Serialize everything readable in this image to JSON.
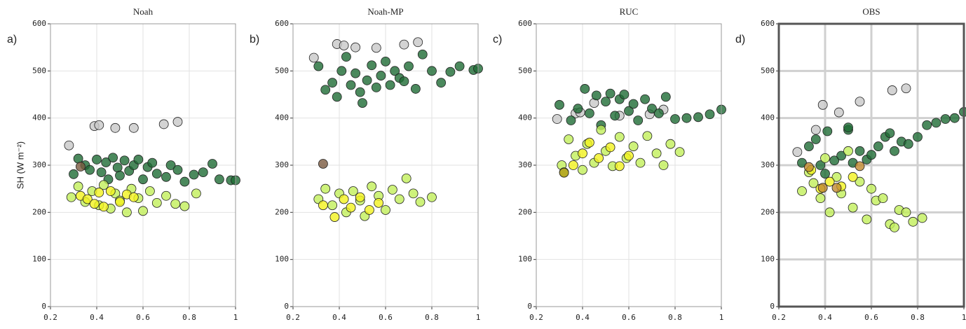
{
  "chart_data": [
    {
      "type": "scatter",
      "title": "Noah",
      "panel_label": "a)",
      "y_label": "SH (W m⁻²)",
      "xlim": [
        0.2,
        1
      ],
      "ylim": [
        0,
        600
      ],
      "xticks": [
        0.2,
        0.4,
        0.6,
        0.8,
        1
      ],
      "yticks": [
        0,
        100,
        200,
        300,
        400,
        500,
        600
      ],
      "grid_style": "light",
      "series": [
        {
          "color": "#c8c8c8",
          "x": [
            0.28,
            0.39,
            0.41,
            0.48,
            0.56,
            0.69,
            0.75
          ],
          "values": [
            342,
            383,
            385,
            379,
            379,
            387,
            392
          ]
        },
        {
          "color": "#1e6b35",
          "x": [
            0.3,
            0.32,
            0.35,
            0.37,
            0.4,
            0.42,
            0.44,
            0.45,
            0.47,
            0.49,
            0.5,
            0.52,
            0.54,
            0.56,
            0.58,
            0.6,
            0.62,
            0.64,
            0.66,
            0.7,
            0.72,
            0.75,
            0.78,
            0.82,
            0.86,
            0.9,
            0.93,
            0.98,
            1.0
          ],
          "values": [
            281,
            314,
            300,
            290,
            312,
            285,
            306,
            270,
            316,
            295,
            278,
            310,
            288,
            300,
            312,
            270,
            296,
            305,
            282,
            275,
            300,
            290,
            265,
            280,
            285,
            303,
            270,
            268,
            268
          ]
        },
        {
          "color": "#c2ef5a",
          "x": [
            0.29,
            0.32,
            0.35,
            0.38,
            0.41,
            0.43,
            0.46,
            0.48,
            0.5,
            0.53,
            0.55,
            0.58,
            0.6,
            0.63,
            0.66,
            0.7,
            0.74,
            0.78,
            0.83
          ],
          "values": [
            232,
            255,
            222,
            245,
            215,
            258,
            208,
            240,
            225,
            200,
            250,
            230,
            203,
            245,
            220,
            235,
            218,
            213,
            240
          ]
        },
        {
          "color": "#f2f21e",
          "x": [
            0.33,
            0.36,
            0.39,
            0.41,
            0.43,
            0.46,
            0.5,
            0.53,
            0.56
          ],
          "values": [
            235,
            228,
            218,
            242,
            212,
            245,
            222,
            238,
            232
          ]
        },
        {
          "color": "#7a5a40",
          "x": [
            0.33
          ],
          "values": [
            297
          ]
        }
      ]
    },
    {
      "type": "scatter",
      "title": "Noah-MP",
      "panel_label": "b)",
      "xlim": [
        0.2,
        1
      ],
      "ylim": [
        0,
        600
      ],
      "xticks": [
        0.2,
        0.4,
        0.6,
        0.8,
        1
      ],
      "yticks": [
        0,
        100,
        200,
        300,
        400,
        500,
        600
      ],
      "grid_style": "light",
      "series": [
        {
          "color": "#c8c8c8",
          "x": [
            0.29,
            0.39,
            0.42,
            0.47,
            0.56,
            0.68,
            0.74
          ],
          "values": [
            528,
            557,
            554,
            550,
            549,
            556,
            561
          ]
        },
        {
          "color": "#1e6b35",
          "x": [
            0.31,
            0.34,
            0.37,
            0.39,
            0.41,
            0.43,
            0.45,
            0.47,
            0.49,
            0.5,
            0.52,
            0.54,
            0.56,
            0.58,
            0.6,
            0.62,
            0.64,
            0.66,
            0.68,
            0.7,
            0.73,
            0.76,
            0.8,
            0.84,
            0.88,
            0.92,
            0.98,
            1.0
          ],
          "values": [
            510,
            460,
            475,
            445,
            500,
            530,
            470,
            495,
            455,
            432,
            480,
            512,
            465,
            490,
            520,
            470,
            500,
            485,
            478,
            510,
            462,
            535,
            500,
            475,
            498,
            510,
            502,
            505
          ]
        },
        {
          "color": "#c2ef5a",
          "x": [
            0.31,
            0.34,
            0.37,
            0.4,
            0.43,
            0.46,
            0.49,
            0.51,
            0.54,
            0.57,
            0.6,
            0.63,
            0.66,
            0.69,
            0.72,
            0.75,
            0.8
          ],
          "values": [
            228,
            250,
            215,
            240,
            200,
            245,
            225,
            192,
            255,
            235,
            205,
            248,
            228,
            272,
            240,
            222,
            232
          ]
        },
        {
          "color": "#f2f21e",
          "x": [
            0.33,
            0.38,
            0.42,
            0.45,
            0.49,
            0.53,
            0.57
          ],
          "values": [
            215,
            190,
            228,
            210,
            232,
            205,
            220
          ]
        },
        {
          "color": "#7a5a40",
          "x": [
            0.33
          ],
          "values": [
            303
          ]
        }
      ]
    },
    {
      "type": "scatter",
      "title": "RUC",
      "panel_label": "c)",
      "xlim": [
        0.2,
        1
      ],
      "ylim": [
        0,
        600
      ],
      "xticks": [
        0.2,
        0.4,
        0.6,
        0.8,
        1
      ],
      "yticks": [
        0,
        100,
        200,
        300,
        400,
        500,
        600
      ],
      "grid_style": "light",
      "series": [
        {
          "color": "#c8c8c8",
          "x": [
            0.29,
            0.37,
            0.39,
            0.45,
            0.56,
            0.69,
            0.75
          ],
          "values": [
            398,
            410,
            412,
            432,
            405,
            408,
            418
          ]
        },
        {
          "color": "#1e6b35",
          "x": [
            0.3,
            0.35,
            0.38,
            0.41,
            0.43,
            0.46,
            0.48,
            0.5,
            0.52,
            0.54,
            0.56,
            0.58,
            0.6,
            0.62,
            0.64,
            0.67,
            0.7,
            0.73,
            0.76,
            0.8,
            0.85,
            0.9,
            0.95,
            1.0
          ],
          "values": [
            428,
            395,
            420,
            462,
            410,
            448,
            385,
            435,
            452,
            405,
            440,
            450,
            415,
            430,
            395,
            440,
            420,
            410,
            445,
            398,
            400,
            402,
            408,
            418
          ]
        },
        {
          "color": "#c2ef5a",
          "x": [
            0.31,
            0.34,
            0.37,
            0.4,
            0.42,
            0.45,
            0.48,
            0.5,
            0.53,
            0.56,
            0.59,
            0.62,
            0.65,
            0.68,
            0.72,
            0.75,
            0.78,
            0.82
          ],
          "values": [
            300,
            355,
            320,
            290,
            345,
            305,
            375,
            330,
            298,
            360,
            315,
            340,
            305,
            362,
            325,
            300,
            345,
            328
          ]
        },
        {
          "color": "#f2f21e",
          "x": [
            0.32,
            0.36,
            0.4,
            0.43,
            0.47,
            0.52,
            0.56,
            0.6
          ],
          "values": [
            285,
            300,
            325,
            348,
            315,
            338,
            298,
            320
          ]
        },
        {
          "color": "#a89a1e",
          "x": [
            0.32
          ],
          "values": [
            284
          ]
        }
      ]
    },
    {
      "type": "scatter",
      "title": "OBS",
      "panel_label": "d)",
      "xlim": [
        0.2,
        1
      ],
      "ylim": [
        0,
        600
      ],
      "xticks": [
        0.2,
        0.4,
        0.6,
        0.8,
        1
      ],
      "yticks": [
        0,
        100,
        200,
        300,
        400,
        500,
        600
      ],
      "grid_style": "heavy",
      "series": [
        {
          "color": "#c8c8c8",
          "x": [
            0.28,
            0.36,
            0.39,
            0.46,
            0.55,
            0.69,
            0.75
          ],
          "values": [
            328,
            375,
            428,
            412,
            435,
            459,
            463
          ]
        },
        {
          "color": "#1e6b35",
          "x": [
            0.3,
            0.33,
            0.36,
            0.38,
            0.41,
            0.44,
            0.47,
            0.5,
            0.52,
            0.55,
            0.58,
            0.6,
            0.63,
            0.66,
            0.7,
            0.73,
            0.76,
            0.8,
            0.84,
            0.88,
            0.92,
            0.96,
            1.0,
            0.5,
            0.4,
            0.68
          ],
          "values": [
            305,
            340,
            355,
            300,
            372,
            310,
            320,
            375,
            305,
            330,
            312,
            322,
            340,
            360,
            330,
            350,
            345,
            360,
            385,
            390,
            398,
            400,
            413,
            380,
            282,
            368
          ]
        },
        {
          "color": "#c2ef5a",
          "x": [
            0.3,
            0.33,
            0.35,
            0.38,
            0.4,
            0.42,
            0.45,
            0.47,
            0.5,
            0.52,
            0.55,
            0.58,
            0.6,
            0.62,
            0.65,
            0.68,
            0.7,
            0.72,
            0.75,
            0.78,
            0.82
          ],
          "values": [
            245,
            285,
            262,
            230,
            315,
            200,
            275,
            240,
            330,
            210,
            265,
            185,
            250,
            225,
            230,
            175,
            168,
            205,
            200,
            180,
            188
          ]
        },
        {
          "color": "#f2f21e",
          "x": [
            0.34,
            0.38,
            0.42,
            0.47,
            0.52
          ],
          "values": [
            290,
            250,
            265,
            255,
            275
          ]
        },
        {
          "color": "#c08a30",
          "x": [
            0.33,
            0.39,
            0.45,
            0.55
          ],
          "values": [
            296,
            252,
            252,
            298
          ]
        }
      ]
    }
  ]
}
